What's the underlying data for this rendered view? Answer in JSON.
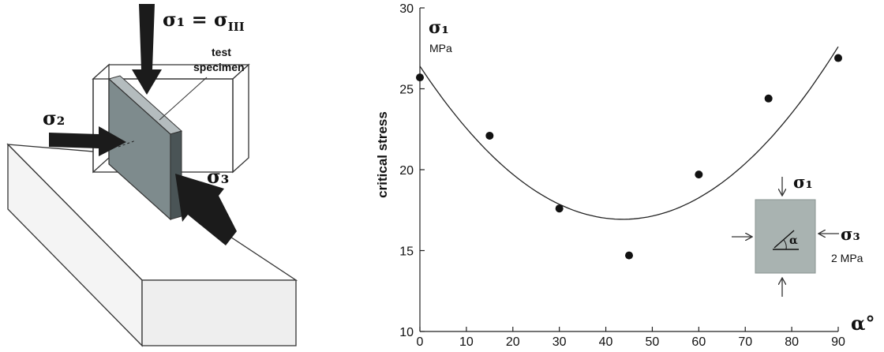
{
  "diagram": {
    "sigma1_label": "σ₁ = σ",
    "sigma1_sub": "III",
    "specimen_label_line1": "test",
    "specimen_label_line2": "specimen",
    "sigma2_label": "σ₂",
    "sigma3_label": "σ₃"
  },
  "chart_data": {
    "type": "scatter",
    "title": "",
    "ylabel": "critical stress",
    "y_symbol": "σ₁",
    "y_unit": "MPa",
    "x_symbol": "α°",
    "xlim": [
      0,
      90
    ],
    "ylim": [
      10,
      30
    ],
    "x_ticks": [
      "0",
      "10",
      "20",
      "30",
      "40",
      "50",
      "60",
      "70",
      "80",
      "90"
    ],
    "y_ticks": [
      "10",
      "15",
      "20",
      "25",
      "30"
    ],
    "points": [
      {
        "x": 0,
        "y": 25.7
      },
      {
        "x": 15,
        "y": 22.1
      },
      {
        "x": 30,
        "y": 17.6
      },
      {
        "x": 45,
        "y": 14.7
      },
      {
        "x": 60,
        "y": 19.7
      },
      {
        "x": 75,
        "y": 24.4
      },
      {
        "x": 90,
        "y": 26.9
      }
    ],
    "fit_curve": {
      "type": "quadratic",
      "points": [
        {
          "x": 0,
          "y": 26.4
        },
        {
          "x": 40,
          "y": 17.0
        },
        {
          "x": 90,
          "y": 27.6
        }
      ]
    },
    "inset": {
      "sigma1_label": "σ₁",
      "sigma3_label": "σ₃",
      "confining_label": "2 MPa",
      "angle_label": "α"
    }
  }
}
